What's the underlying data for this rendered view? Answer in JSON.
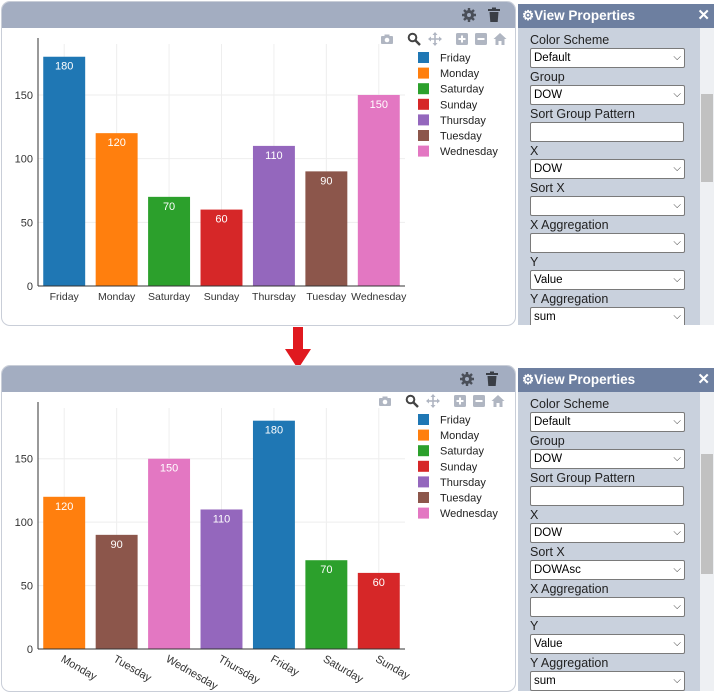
{
  "before": {
    "properties": {
      "title": "View Properties",
      "close_glyph": "✕",
      "fields": [
        {
          "label": "Color Scheme",
          "type": "select",
          "value": "Default"
        },
        {
          "label": "Group",
          "type": "select",
          "value": "DOW"
        },
        {
          "label": "Sort Group Pattern",
          "type": "text",
          "value": ""
        },
        {
          "label": "X",
          "type": "select",
          "value": "DOW"
        },
        {
          "label": "Sort X",
          "type": "select",
          "value": ""
        },
        {
          "label": "X Aggregation",
          "type": "select",
          "value": ""
        },
        {
          "label": "Y",
          "type": "select",
          "value": "Value"
        },
        {
          "label": "Y Aggregation",
          "type": "select",
          "value": "sum"
        }
      ]
    },
    "chart_data": {
      "type": "bar",
      "categories": [
        "Friday",
        "Monday",
        "Saturday",
        "Sunday",
        "Thursday",
        "Tuesday",
        "Wednesday"
      ],
      "values": [
        180,
        120,
        70,
        60,
        110,
        90,
        150
      ],
      "ylim": [
        0,
        190
      ],
      "yticks": [
        0,
        50,
        100,
        150
      ],
      "legend": [
        "Friday",
        "Monday",
        "Saturday",
        "Sunday",
        "Thursday",
        "Tuesday",
        "Wednesday"
      ],
      "legend_position": "top-right",
      "grid": true
    }
  },
  "after": {
    "properties": {
      "title": "View Properties",
      "close_glyph": "✕",
      "fields": [
        {
          "label": "Color Scheme",
          "type": "select",
          "value": "Default"
        },
        {
          "label": "Group",
          "type": "select",
          "value": "DOW"
        },
        {
          "label": "Sort Group Pattern",
          "type": "text",
          "value": ""
        },
        {
          "label": "X",
          "type": "select",
          "value": "DOW"
        },
        {
          "label": "Sort X",
          "type": "select",
          "value": "DOWAsc"
        },
        {
          "label": "X Aggregation",
          "type": "select",
          "value": ""
        },
        {
          "label": "Y",
          "type": "select",
          "value": "Value"
        },
        {
          "label": "Y Aggregation",
          "type": "select",
          "value": "sum"
        }
      ]
    },
    "chart_data": {
      "type": "bar",
      "categories": [
        "Monday",
        "Tuesday",
        "Wednesday",
        "Thursday",
        "Friday",
        "Saturday",
        "Sunday"
      ],
      "values": [
        120,
        90,
        150,
        110,
        180,
        70,
        60
      ],
      "ylim": [
        0,
        190
      ],
      "yticks": [
        0,
        50,
        100,
        150
      ],
      "legend": [
        "Friday",
        "Monday",
        "Saturday",
        "Sunday",
        "Thursday",
        "Tuesday",
        "Wednesday"
      ],
      "legend_position": "top-right",
      "grid": true
    }
  },
  "colors": {
    "Friday": "#1f77b4",
    "Monday": "#ff7f0e",
    "Saturday": "#2ca02c",
    "Sunday": "#d62728",
    "Thursday": "#9467bd",
    "Tuesday": "#8c564b",
    "Wednesday": "#e377c2",
    "header": "#a3adc1",
    "props_header": "#6d7fa0",
    "props_bg": "#c9d1dd",
    "arrow": "#e0191f"
  },
  "icons": {
    "card_header": [
      "gear-icon",
      "trash-icon"
    ],
    "modebar": [
      "camera-icon",
      "zoom-icon",
      "pan-icon",
      "zoom-in-icon",
      "zoom-out-icon",
      "home-icon"
    ],
    "transition": "down-arrow-icon"
  }
}
